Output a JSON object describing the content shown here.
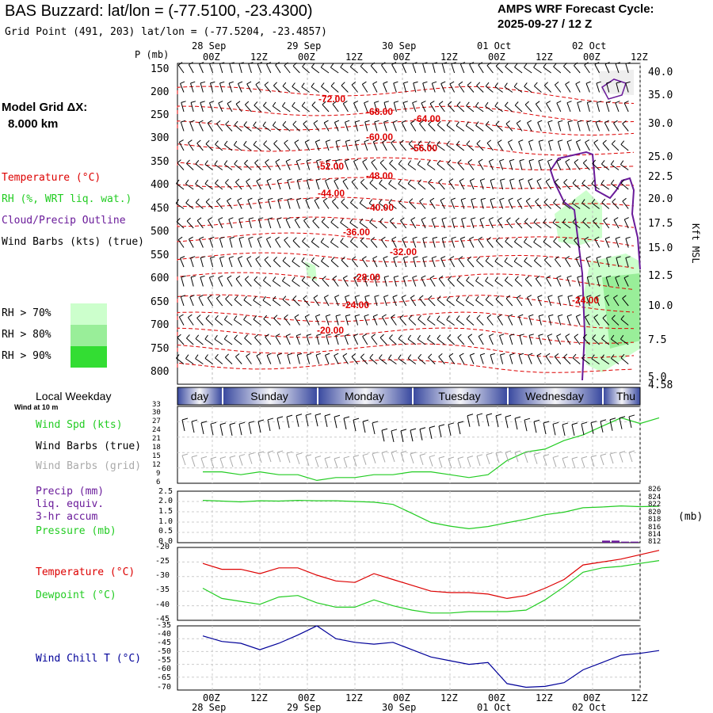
{
  "header": {
    "title": "BAS Buzzard:  lat/lon = (-77.5100, -23.4300)",
    "grid_point": "Grid Point (491, 203) lat/lon = (-77.5204, -23.4857)",
    "cycle_label": "AMPS WRF Forecast Cycle:",
    "cycle_value": "2025-09-27 / 12  Z"
  },
  "left_legend": {
    "model_grid_label": "Model Grid ΔX:",
    "model_grid_value": "8.000 km",
    "temperature": "Temperature (°C)",
    "rh": "RH (%, WRT liq. wat.)",
    "cloud": "Cloud/Precip Outline",
    "wind_barbs": "Wind Barbs (kts) (true)",
    "rh70": "RH > 70%",
    "rh80": "RH > 80%",
    "rh90": "RH > 90%",
    "rh_colors": [
      "#ccffcc",
      "#99ee99",
      "#33dd33"
    ]
  },
  "time_axis": {
    "dates_top": [
      "28 Sep",
      "29 Sep",
      "30 Sep",
      "01 Oct",
      "02 Oct"
    ],
    "hours": [
      "00Z",
      "12Z",
      "00Z",
      "12Z",
      "00Z",
      "12Z",
      "00Z",
      "12Z",
      "00Z",
      "12Z"
    ],
    "dates_bottom": [
      "28 Sep",
      "29 Sep",
      "30 Sep",
      "01 Oct",
      "02 Oct"
    ]
  },
  "cross_section": {
    "p_label": "P (mb)",
    "pressure_ticks": [
      "150",
      "200",
      "250",
      "300",
      "350",
      "400",
      "450",
      "500",
      "550",
      "600",
      "650",
      "700",
      "750",
      "800"
    ],
    "height_ticks": [
      "40.0",
      "35.0",
      "30.0",
      "25.0",
      "22.5",
      "20.0",
      "17.5",
      "15.0",
      "12.5",
      "10.0",
      "7.5",
      "5.0"
    ],
    "surface_height": "4.58",
    "height_label": "Kft MSL",
    "contour_labels": [
      "-72.00",
      "-68.00",
      "-64.00",
      "-60.00",
      "-56.00",
      "-52.00",
      "-48.00",
      "-44.00",
      "-40.00",
      "-36.00",
      "-32.00",
      "-28.00",
      "-24.00",
      "-20.00",
      "-24.00"
    ]
  },
  "weekday_bar": {
    "title": "Local Weekday",
    "days": [
      "day",
      "Sunday",
      "Monday",
      "Tuesday",
      "Wednesday",
      "Thu"
    ]
  },
  "wind_panel": {
    "subtitle": "Wind at 10 m",
    "spd_label": "Wind Spd (kts)",
    "barbs_true": "Wind Barbs (true)",
    "barbs_grid": "Wind Barbs (grid)",
    "yticks": [
      "33",
      "30",
      "27",
      "24",
      "21",
      "18",
      "15",
      "12",
      "9",
      "6"
    ]
  },
  "precip_panel": {
    "precip_label": "Precip (mm)",
    "liq": "liq. equiv.",
    "accum": "3-hr accum",
    "pressure_label": "Pressure (mb)",
    "yticks_left": [
      "2.5",
      "2.0",
      "1.5",
      "1.0",
      "0.5",
      "0.0"
    ],
    "yticks_right": [
      "826",
      "824",
      "822",
      "820",
      "818",
      "816",
      "814",
      "812"
    ],
    "unit_right": "(mb)"
  },
  "temp_panel": {
    "temp_label": "Temperature (°C)",
    "dew_label": "Dewpoint (°C)",
    "yticks": [
      "-20",
      "-25",
      "-30",
      "-35",
      "-40",
      "-45"
    ]
  },
  "chill_panel": {
    "label": "Wind Chill T (°C)",
    "yticks": [
      "-35",
      "-40",
      "-45",
      "-50",
      "-55",
      "-60",
      "-65",
      "-70"
    ]
  },
  "colors": {
    "temperature": "#dd0000",
    "dewpoint": "#22cc22",
    "windchill": "#000099",
    "cloud": "#6a1b9a",
    "precip": "#6a1b9a",
    "barbs_grid": "#aaaaaa"
  },
  "chart_data": [
    {
      "type": "line",
      "title": "Wind Spd (kts)",
      "x_hours": [
        0,
        6,
        12,
        18,
        24,
        30,
        36,
        42,
        48,
        54,
        60,
        66,
        72,
        78,
        84,
        90,
        96,
        102,
        108,
        114,
        120,
        126,
        132,
        138,
        144
      ],
      "series": [
        {
          "name": "Wind Spd (kts)",
          "values": [
            10,
            10,
            9,
            10,
            9,
            9,
            7,
            8,
            8,
            9,
            9,
            10,
            10,
            9,
            8,
            9,
            14,
            17,
            18,
            21,
            23,
            26,
            29,
            27,
            29
          ]
        }
      ],
      "ylim": [
        6,
        33
      ]
    },
    {
      "type": "line",
      "title": "Pressure (mb)",
      "x_hours": [
        0,
        6,
        12,
        18,
        24,
        30,
        36,
        42,
        48,
        54,
        60,
        66,
        72,
        78,
        84,
        90,
        96,
        102,
        108,
        114,
        120,
        126,
        132,
        138,
        144
      ],
      "series": [
        {
          "name": "Pressure (mb)",
          "values": [
            823.5,
            823.3,
            823.1,
            823.4,
            823.3,
            823.5,
            823.4,
            823.4,
            823.2,
            823.0,
            822.4,
            820.0,
            817.5,
            816.5,
            815.8,
            816.4,
            817.4,
            818.4,
            819.6,
            820.3,
            821.5,
            821.7,
            822.0,
            821.8,
            821.9
          ]
        }
      ],
      "ylim": [
        812,
        826
      ]
    },
    {
      "type": "bar",
      "title": "Precip (mm)",
      "x_hours": [
        126,
        129,
        132,
        135
      ],
      "values": [
        0.1,
        0.1,
        0.05,
        0.05
      ],
      "ylim": [
        0,
        2.5
      ]
    },
    {
      "type": "line",
      "title": "Temperature / Dewpoint",
      "x_hours": [
        0,
        6,
        12,
        18,
        24,
        30,
        36,
        42,
        48,
        54,
        60,
        66,
        72,
        78,
        84,
        90,
        96,
        102,
        108,
        114,
        120,
        126,
        132,
        138,
        144
      ],
      "series": [
        {
          "name": "Temperature (°C)",
          "values": [
            -25.5,
            -27.5,
            -27.5,
            -29,
            -27,
            -27,
            -29.5,
            -31.5,
            -32,
            -29,
            -31,
            -33,
            -35,
            -35.5,
            -35.5,
            -36,
            -37.5,
            -36.5,
            -34,
            -31,
            -26,
            -25,
            -24,
            -22.5,
            -21
          ]
        },
        {
          "name": "Dewpoint (°C)",
          "values": [
            -34,
            -37.5,
            -38.5,
            -39.5,
            -37,
            -36.5,
            -39,
            -40.5,
            -40.5,
            -38,
            -40,
            -41.5,
            -42.5,
            -42.5,
            -42,
            -42,
            -42,
            -41.5,
            -38,
            -33.5,
            -28.5,
            -27,
            -26.5,
            -25.5,
            -24.5
          ]
        }
      ],
      "ylim": [
        -45,
        -20
      ]
    },
    {
      "type": "line",
      "title": "Wind Chill T (°C)",
      "x_hours": [
        0,
        6,
        12,
        18,
        24,
        30,
        36,
        42,
        48,
        54,
        60,
        66,
        72,
        78,
        84,
        90,
        96,
        102,
        108,
        114,
        120,
        126,
        132,
        138,
        144
      ],
      "series": [
        {
          "name": "Wind Chill T (°C)",
          "values": [
            -40.5,
            -43.5,
            -44.5,
            -48,
            -44.5,
            -40,
            -35,
            -42,
            -44,
            -45,
            -44,
            -48,
            -52,
            -54,
            -56,
            -55,
            -66.5,
            -68.5,
            -68,
            -66,
            -59,
            -55,
            -51,
            -50,
            -48.5
          ]
        }
      ],
      "ylim": [
        -70,
        -35
      ]
    }
  ]
}
